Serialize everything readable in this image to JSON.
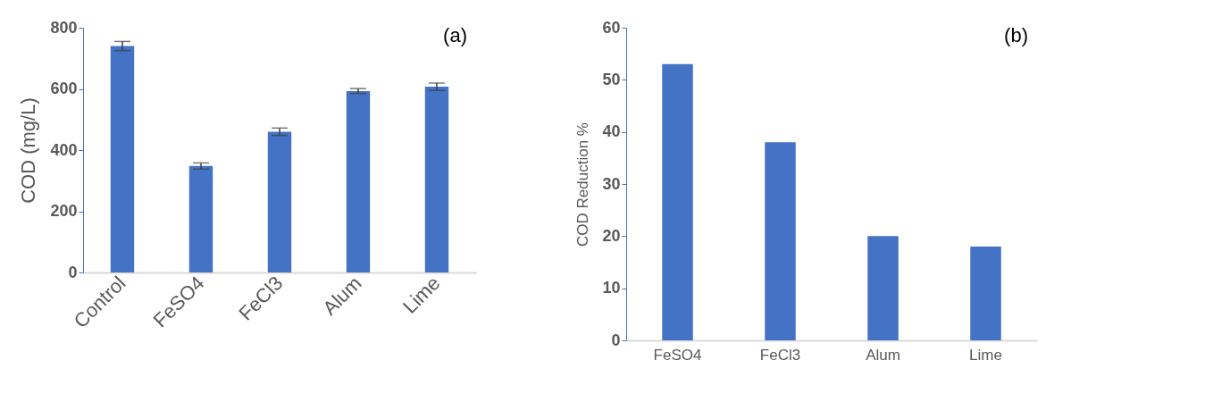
{
  "chart_data": [
    {
      "type": "bar",
      "title": "(a)",
      "ylabel": "COD (mg/L)",
      "categories": [
        "Control",
        "FeSO4",
        "FeCl3",
        "Alum",
        "Lime"
      ],
      "values": [
        740,
        348,
        460,
        593,
        607
      ],
      "errors": [
        15,
        10,
        12,
        8,
        12
      ],
      "color": "#4472c4",
      "ylim": [
        0,
        800
      ],
      "yticks": [
        0,
        200,
        400,
        600,
        800
      ],
      "grid": false
    },
    {
      "type": "bar",
      "title": "(b)",
      "ylabel": "COD Reduction %",
      "categories": [
        "FeSO4",
        "FeCl3",
        "Alum",
        "Lime"
      ],
      "values": [
        53,
        38,
        20,
        18
      ],
      "color": "#4472c4",
      "ylim": [
        0,
        60
      ],
      "yticks": [
        0,
        10,
        20,
        30,
        40,
        50,
        60
      ],
      "grid": false
    }
  ]
}
